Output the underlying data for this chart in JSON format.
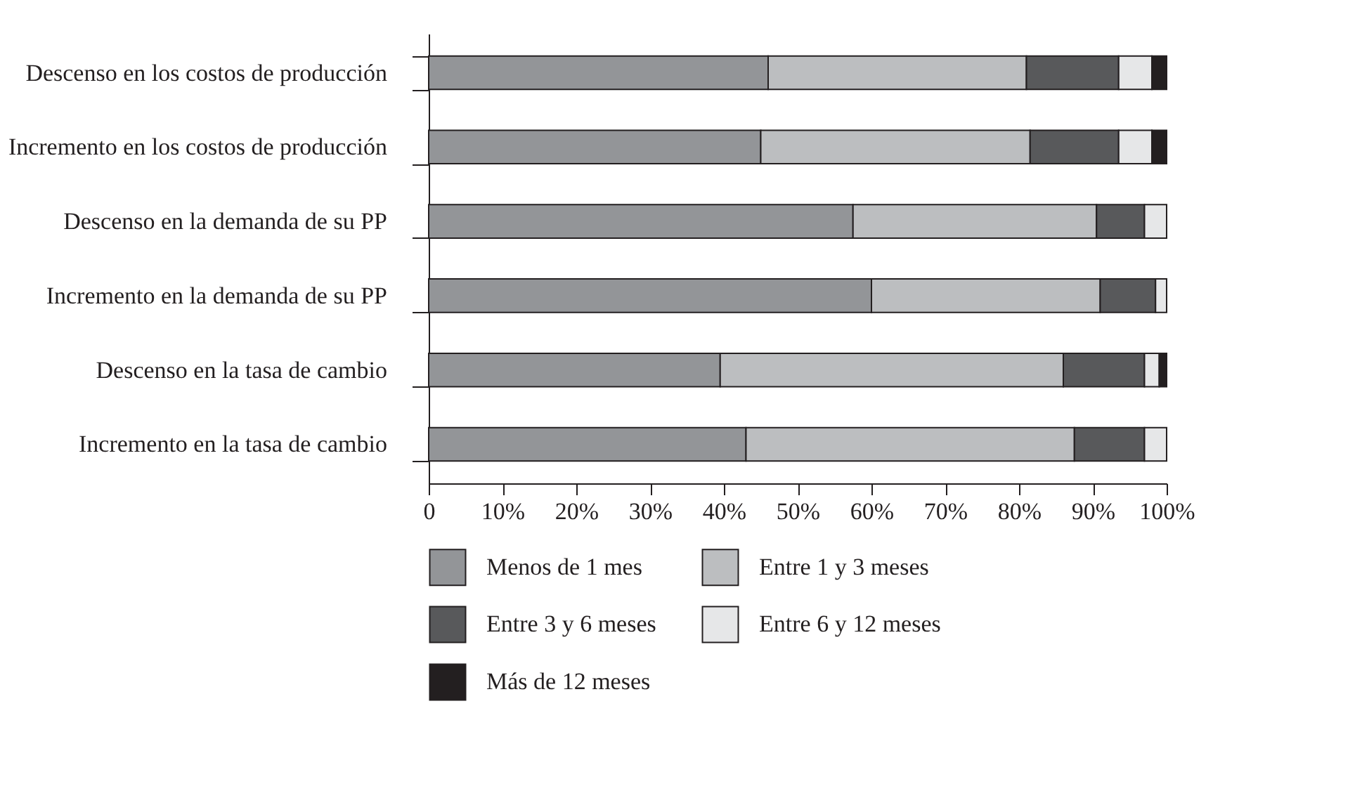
{
  "chart_data": {
    "type": "bar",
    "orientation": "horizontal",
    "stacked": true,
    "categories": [
      "Descenso en los costos de producción",
      "Incremento en los costos de producción",
      "Descenso en la demanda de su PP",
      "Incremento en la demanda de su PP",
      "Descenso en la tasa de cambio",
      "Incremento en la tasa de cambio"
    ],
    "series": [
      {
        "name": "Menos de 1 mes",
        "color": "#939598",
        "values": [
          46,
          45,
          57.5,
          60,
          39.5,
          43
        ]
      },
      {
        "name": "Entre 1 y 3 meses",
        "color": "#bcbec0",
        "values": [
          35,
          36.5,
          33,
          31,
          46.5,
          44.5
        ]
      },
      {
        "name": "Entre 3 y 6 meses",
        "color": "#58595b",
        "values": [
          12.5,
          12,
          6.5,
          7.5,
          11,
          9.5
        ]
      },
      {
        "name": "Entre 6 y 12 meses",
        "color": "#e6e7e8",
        "values": [
          4.5,
          4.5,
          3,
          1.5,
          2,
          3
        ]
      },
      {
        "name": "Más de 12 meses",
        "color": "#231f20",
        "values": [
          2,
          2,
          null,
          null,
          1,
          null
        ]
      }
    ],
    "xlim": [
      0,
      100
    ],
    "xticks": [
      {
        "value": 0,
        "label": "0"
      },
      {
        "value": 10,
        "label": "10%"
      },
      {
        "value": 20,
        "label": "20%"
      },
      {
        "value": 30,
        "label": "30%"
      },
      {
        "value": 40,
        "label": "40%"
      },
      {
        "value": 50,
        "label": "50%"
      },
      {
        "value": 60,
        "label": "60%"
      },
      {
        "value": 70,
        "label": "70%"
      },
      {
        "value": 80,
        "label": "80%"
      },
      {
        "value": 90,
        "label": "90%"
      },
      {
        "value": 100,
        "label": "100%"
      }
    ],
    "grid": false,
    "legend": "bottom"
  }
}
